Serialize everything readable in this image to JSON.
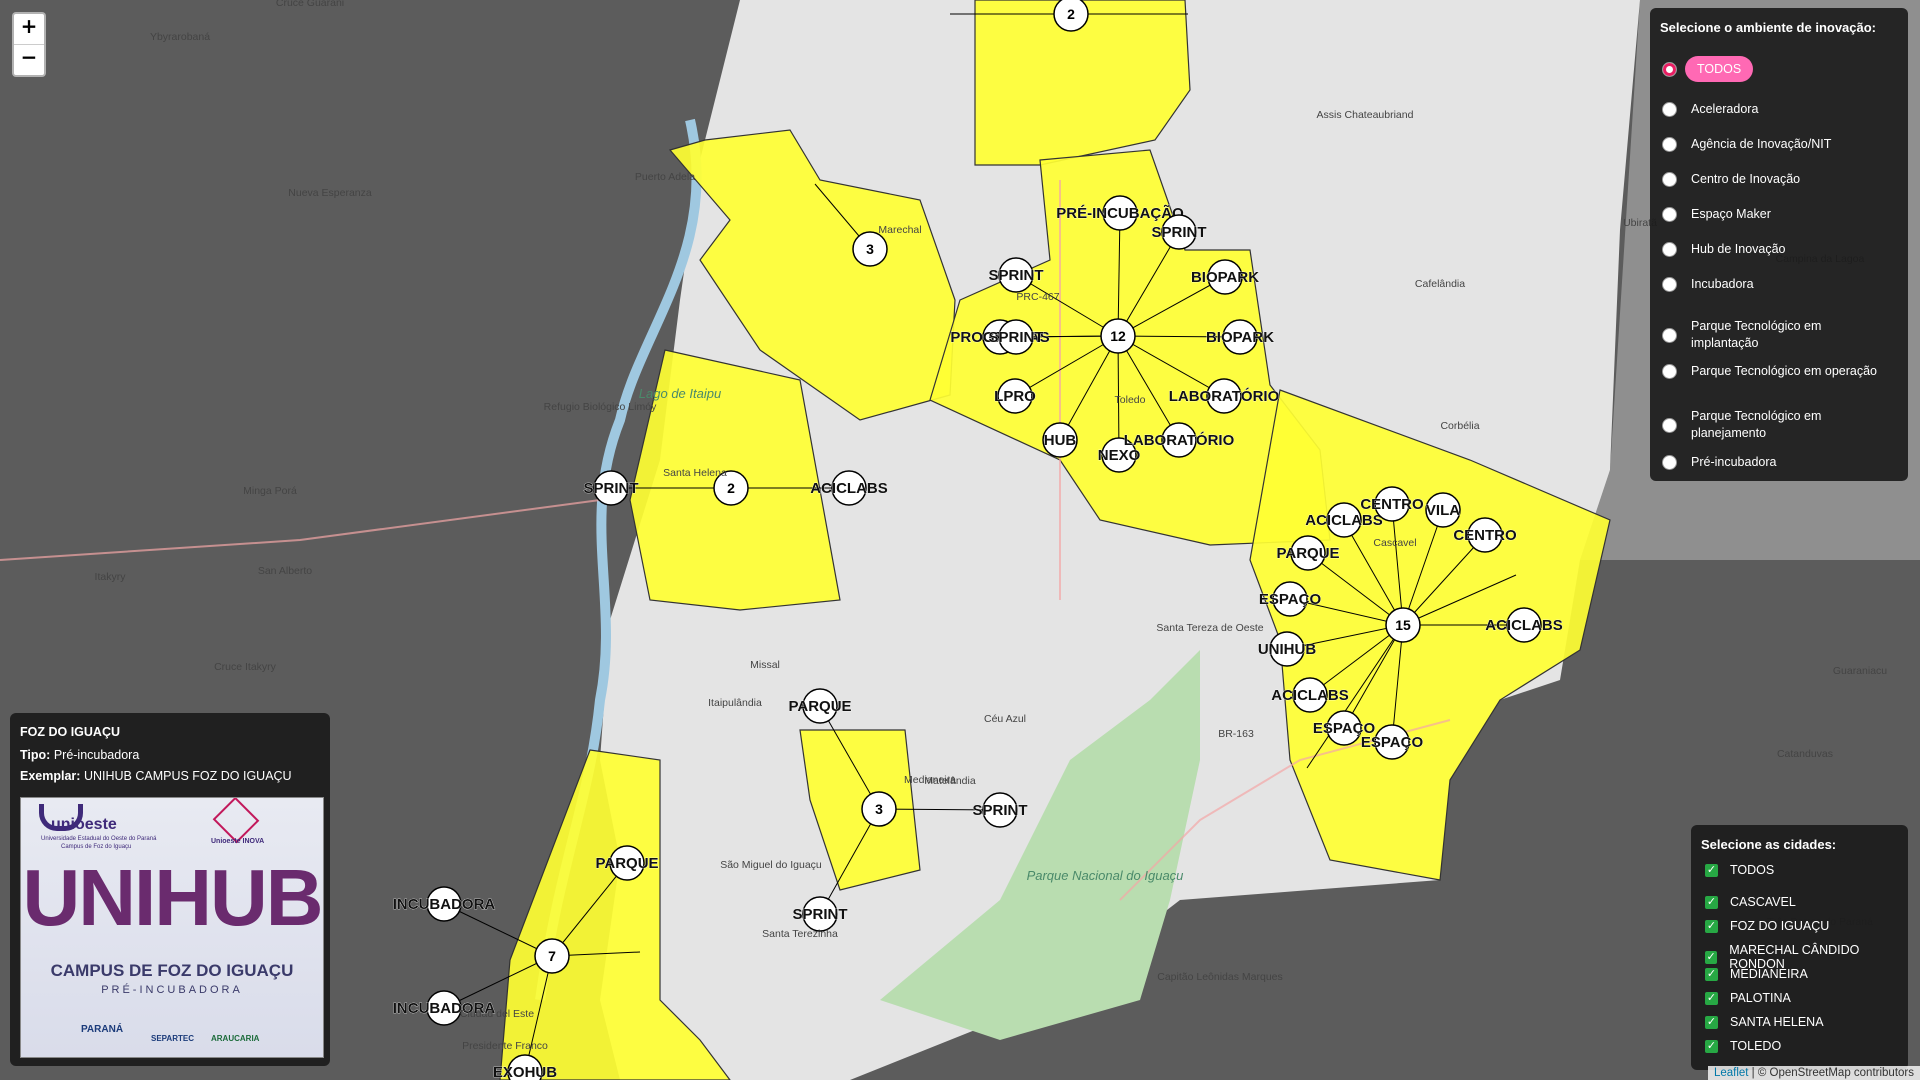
{
  "zoom": {
    "in": "+",
    "out": "−"
  },
  "env_panel": {
    "title": "Selecione o ambiente de inovação:",
    "options": [
      "TODOS",
      "Aceleradora",
      "Agência de Inovação/NIT",
      "Centro de Inovação",
      "Espaço Maker",
      "Hub de Inovação",
      "Incubadora",
      "Parque Tecnológico em implantação",
      "Parque Tecnológico em operação",
      "Parque Tecnológico em planejamento",
      "Pré-incubadora"
    ],
    "selected": "TODOS"
  },
  "cities_panel": {
    "title": "Selecione as cidades:",
    "cities": [
      "TODOS",
      "CASCAVEL",
      "FOZ DO IGUAÇU",
      "MARECHAL CÂNDIDO RONDON",
      "MEDIANEIRA",
      "PALOTINA",
      "SANTA HELENA",
      "TOLEDO"
    ],
    "all_checked": true
  },
  "info_panel": {
    "city": "FOZ DO IGUAÇU",
    "tipo_label": "Tipo:",
    "tipo": "Pré-incubadora",
    "exemplar_label": "Exemplar:",
    "exemplar": "UNIHUB CAMPUS FOZ DO IGUAÇU",
    "card": {
      "org": "unioeste",
      "org_sub": "Universidade Estadual do Oeste do Paraná",
      "campus_sub": "Campus de Foz do Iguaçu",
      "inova": "Unioeste INOVA",
      "title": "UNIHUB",
      "line1": "CAMPUS DE FOZ DO IGUAÇU",
      "line2": "PRÉ-INCUBADORA",
      "footer": [
        "PARANÁ",
        "SEPARTEC",
        "ARAUCARIA"
      ]
    }
  },
  "map_labels": [
    "Cruce Guarani",
    "Ybyrarobaná",
    "Puerto Adela",
    "Nueva Esperanza",
    "Minga Porá",
    "Itakyry",
    "San Alberto",
    "Cruce Itakyry",
    "Lago de Itaipu",
    "Marechal",
    "Toledo",
    "Santa Helena",
    "Missal",
    "Itaipulândia",
    "Medianeira",
    "São Miguel do Iguaçu",
    "Céu Azul",
    "Matelândia",
    "Santa Tereza de Oeste",
    "Cascavel",
    "Assis Chateaubriand",
    "Cafelândia",
    "Corbélia",
    "Parque Nacional do Iguaçu",
    "Capitão Leônidas Marques",
    "Catanduvas",
    "Guaraniacu",
    "Três Barras do Paraná",
    "Ciudad del Este",
    "Presidente Franco",
    "Santa Terezinha",
    "Hernándarias",
    "Refugio Biológico Limóy",
    "BR-163",
    "PRC-467",
    "Ubiratã",
    "Campina da Lagoa"
  ],
  "clusters": [
    {
      "n": "2"
    },
    {
      "n": "3"
    },
    {
      "n": "12"
    },
    {
      "n": "2"
    },
    {
      "n": "15"
    },
    {
      "n": "3"
    },
    {
      "n": "7"
    }
  ],
  "markers": [
    "PRÉ-INCUBAÇÃO",
    "SPRINT",
    "SPRINT",
    "BIOPARK",
    "PROGRAMAS",
    "BIOPARK",
    "LPRO",
    "LABORATÓRIO",
    "HUB",
    "NEXO",
    "LABORATÓRIO",
    "SPRINT",
    "SPRINT",
    "ACICLABS",
    "ACICLABS",
    "CENTRO",
    "PARQUE",
    "CENTRO",
    "VILA",
    "ESPAÇO",
    "ACICLABS",
    "UNIHUB",
    "ACICLABS",
    "ESPAÇO",
    "ESPAÇO",
    "PARQUE",
    "SPRINT",
    "SPRINT",
    "PARQUE",
    "INCUBADORA",
    "INCUBADORA",
    "EXOHUB"
  ],
  "attribution": {
    "leaflet": "Leaflet",
    "osm": "© OpenStreetMap contributors"
  },
  "colors": {
    "region": "#ffff33",
    "selected_pill": "#ff69b4"
  }
}
